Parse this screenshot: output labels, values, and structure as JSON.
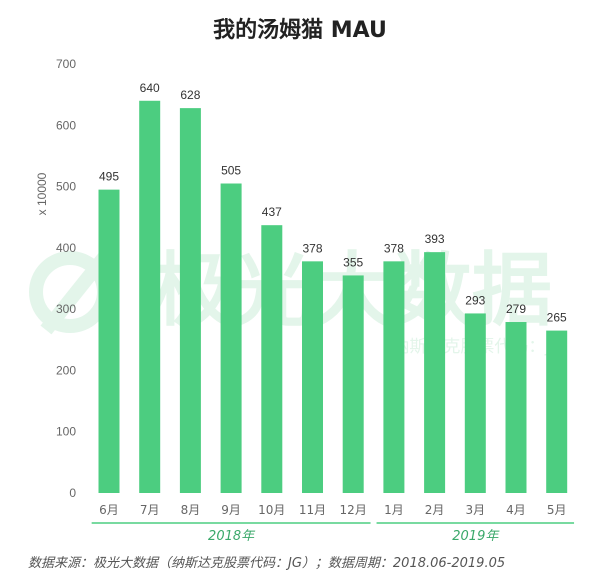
{
  "title": "我的汤姆猫 MAU",
  "footer": "数据来源：极光大数据（纳斯达克股票代码：JG）；数据周期：2018.06-2019.05",
  "watermark": {
    "text": "极光大数据",
    "subtext": "纳斯达克股票代码：JG"
  },
  "colors": {
    "bar": "#4ccd80",
    "group_line": "#4ccd80",
    "group_label": "#3aa86a",
    "axis_text": "#666666",
    "watermark": "#e3f5ea"
  },
  "chart_data": {
    "type": "bar",
    "title": "我的汤姆猫 MAU",
    "ylabel": "x 10000",
    "xlabel": "",
    "ylim": [
      0,
      700
    ],
    "yticks": [
      0,
      100,
      200,
      300,
      400,
      500,
      600,
      700
    ],
    "categories": [
      "6月",
      "7月",
      "8月",
      "9月",
      "10月",
      "11月",
      "12月",
      "1月",
      "2月",
      "3月",
      "4月",
      "5月"
    ],
    "values": [
      495,
      640,
      628,
      505,
      437,
      378,
      355,
      378,
      393,
      293,
      279,
      265
    ],
    "data_labels": true,
    "grid": false,
    "legend": "none",
    "groups": [
      {
        "label": "2018年",
        "from": 0,
        "to": 6
      },
      {
        "label": "2019年",
        "from": 7,
        "to": 11
      }
    ]
  }
}
